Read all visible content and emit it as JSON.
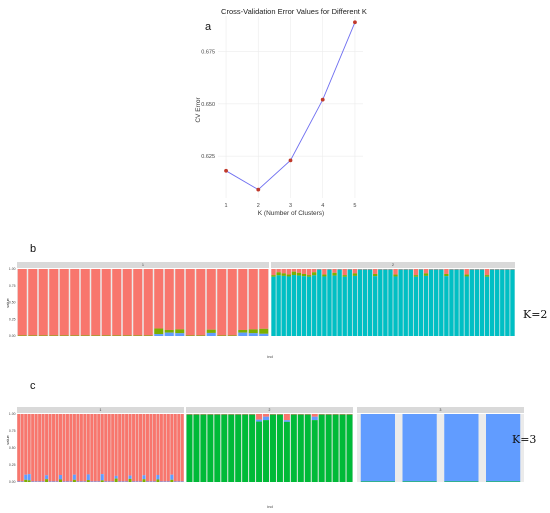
{
  "panels": {
    "a": {
      "letter": "a",
      "chart_data": {
        "type": "line",
        "title": "Cross-Validation Error Values for Different K",
        "xlabel": "K (Number of Clusters)",
        "ylabel": "CV Error",
        "x": [
          1,
          2,
          3,
          4,
          5
        ],
        "y": [
          0.618,
          0.609,
          0.623,
          0.652,
          0.689
        ],
        "xlim": [
          0.75,
          5.25
        ],
        "ylim": [
          0.605,
          0.692
        ],
        "x_ticks": [
          "1",
          "2",
          "3",
          "4",
          "5"
        ],
        "y_ticks": [
          0.625,
          0.65,
          0.675
        ],
        "y_tick_labels": [
          "0.625",
          "0.650",
          "0.675"
        ],
        "line_color": "#6f6ff0",
        "point_color": "#c0392b"
      }
    },
    "b": {
      "letter": "b",
      "k_label": "K=2",
      "chart_data": {
        "type": "bar",
        "ylabel": "value",
        "xlabel": "ind",
        "y_ticks": [
          "1.00",
          "0.75",
          "0.50",
          "0.25",
          "0.00"
        ],
        "colors": [
          "#f8766d",
          "#00bfc4",
          "#7cae00",
          "#619cff",
          "#c77cff"
        ],
        "facets": [
          {
            "label": "1",
            "bars": 24,
            "dominant": 0,
            "minor_bars": [
              13,
              14,
              15,
              18,
              21,
              22,
              23
            ]
          },
          {
            "label": "2",
            "bars": 48,
            "dominant": 1,
            "minor_bars": [
              0,
              1,
              2,
              3,
              4,
              5,
              6,
              7,
              8,
              10,
              12,
              14,
              16,
              20,
              24,
              28,
              30,
              34,
              38,
              42
            ]
          }
        ]
      }
    },
    "c": {
      "letter": "c",
      "k_label": "K=3",
      "chart_data": {
        "type": "bar",
        "ylabel": "value",
        "xlabel": "ind",
        "y_ticks": [
          "1.00",
          "0.75",
          "0.50",
          "0.25",
          "0.00"
        ],
        "colors": [
          "#f8766d",
          "#00ba38",
          "#619cff",
          "#7cae00",
          "#c77cff"
        ],
        "facets": [
          {
            "label": "1",
            "bars": 48,
            "dominant": 0,
            "minor_bars": [
              2,
              3,
              8,
              12,
              16,
              20,
              24,
              28,
              32,
              36,
              40,
              44
            ]
          },
          {
            "label": "2",
            "bars": 24,
            "dominant": 1,
            "minor_bars": [
              10,
              11,
              14,
              18
            ]
          },
          {
            "label": "3",
            "bars": 4,
            "dominant": 2,
            "minor_bars": []
          }
        ]
      }
    }
  }
}
